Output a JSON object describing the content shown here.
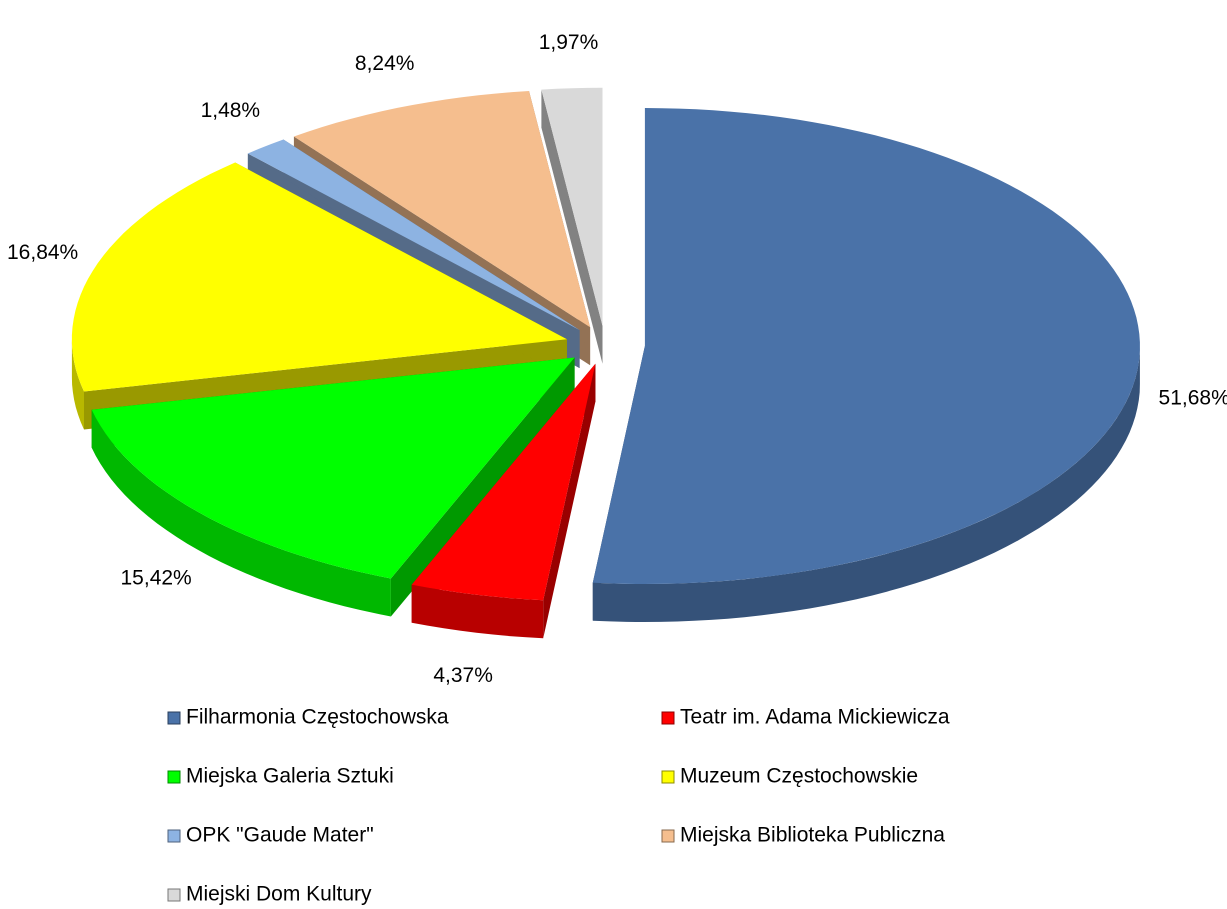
{
  "chart_data": {
    "type": "pie3d",
    "categories": [
      "Filharmonia Częstochowska",
      "Teatr im. Adama Mickiewicza",
      "Miejska Galeria Sztuki",
      "Muzeum Częstochowskie",
      "OPK \"Gaude Mater\"",
      "Miejska Biblioteka Publiczna",
      "Miejski Dom Kultury"
    ],
    "values": [
      51.68,
      4.37,
      15.42,
      16.84,
      1.48,
      8.24,
      1.97
    ],
    "value_labels": [
      "51,68%",
      "4,37%",
      "15,42%",
      "16,84%",
      "1,48%",
      "8,24%",
      "1,97%"
    ],
    "colors": [
      "#4a72a8",
      "#ff0000",
      "#00ff00",
      "#ffff00",
      "#8db3e2",
      "#f5be8e",
      "#d9d9d9"
    ],
    "legend": "bottom"
  }
}
